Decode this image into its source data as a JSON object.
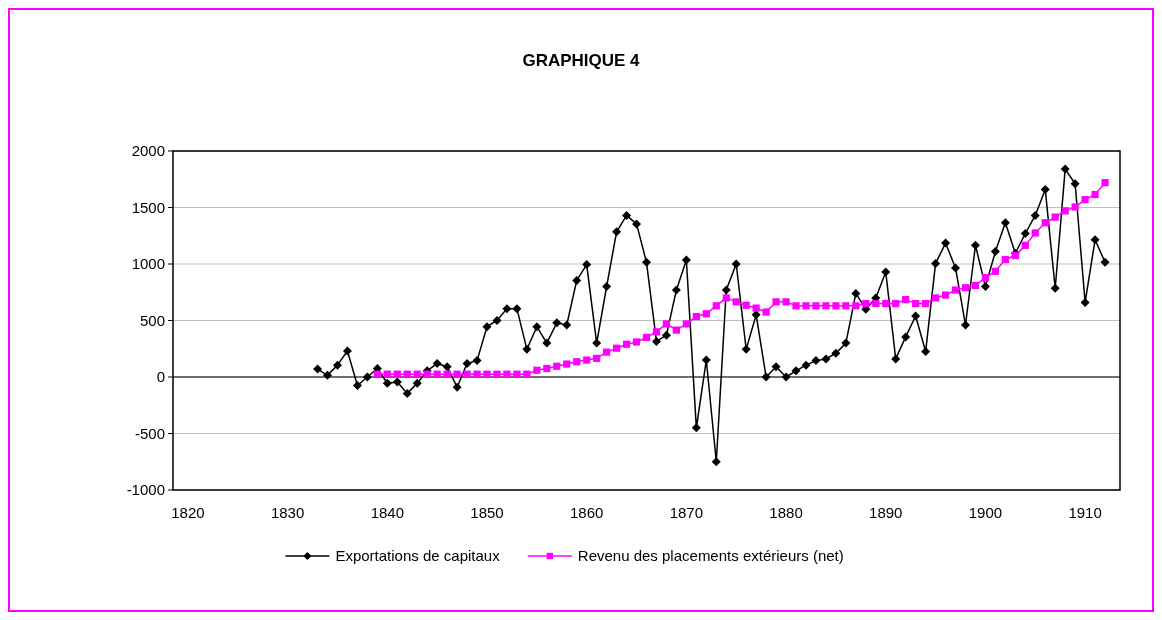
{
  "chart_data": {
    "type": "line",
    "title": "GRAPHIQUE 4",
    "xlim": [
      1818.5,
      1913.5
    ],
    "xticks": [
      1820,
      1830,
      1840,
      1850,
      1860,
      1870,
      1880,
      1890,
      1900,
      1910
    ],
    "ylim": [
      -1000,
      2000
    ],
    "yticks": [
      -1000,
      -500,
      0,
      500,
      1000,
      1500,
      2000
    ],
    "grid": "y",
    "legend": "bottom",
    "ref_lines": [
      {
        "axis": "y",
        "value": 0,
        "color": "#000000"
      }
    ],
    "series": [
      {
        "name": "Exportations de capitaux",
        "color": "#000000",
        "marker": "diamond",
        "x": [
          1833,
          1834,
          1835,
          1836,
          1837,
          1838,
          1839,
          1840,
          1841,
          1842,
          1843,
          1844,
          1845,
          1846,
          1847,
          1848,
          1849,
          1850,
          1851,
          1852,
          1853,
          1854,
          1855,
          1856,
          1857,
          1858,
          1859,
          1860,
          1861,
          1862,
          1863,
          1864,
          1865,
          1866,
          1867,
          1868,
          1869,
          1870,
          1871,
          1872,
          1873,
          1874,
          1875,
          1876,
          1877,
          1878,
          1879,
          1880,
          1881,
          1882,
          1883,
          1884,
          1885,
          1886,
          1887,
          1888,
          1889,
          1890,
          1891,
          1892,
          1893,
          1894,
          1895,
          1896,
          1897,
          1898,
          1899,
          1900,
          1901,
          1902,
          1903,
          1904,
          1905,
          1906,
          1907,
          1908,
          1909,
          1910,
          1911,
          1912
        ],
        "values": [
          70,
          15,
          105,
          230,
          -75,
          0,
          75,
          -55,
          -45,
          -145,
          -55,
          55,
          120,
          90,
          -90,
          120,
          145,
          445,
          500,
          605,
          605,
          245,
          445,
          300,
          480,
          460,
          855,
          995,
          300,
          800,
          1285,
          1430,
          1355,
          1015,
          315,
          370,
          770,
          1035,
          -450,
          150,
          -750,
          770,
          1000,
          245,
          550,
          0,
          90,
          0,
          55,
          105,
          145,
          160,
          210,
          300,
          740,
          600,
          700,
          930,
          160,
          355,
          540,
          225,
          1005,
          1185,
          965,
          460,
          1165,
          800,
          1110,
          1365,
          1095,
          1270,
          1430,
          1660,
          785,
          1840,
          1710,
          660,
          1215,
          1015
        ]
      },
      {
        "name": "Revenu des placements extérieurs (net)",
        "color": "#ff00ff",
        "marker": "square",
        "x": [
          1839,
          1840,
          1841,
          1842,
          1843,
          1844,
          1845,
          1846,
          1847,
          1848,
          1849,
          1850,
          1851,
          1852,
          1853,
          1854,
          1855,
          1856,
          1857,
          1858,
          1859,
          1860,
          1861,
          1862,
          1863,
          1864,
          1865,
          1866,
          1867,
          1868,
          1869,
          1870,
          1871,
          1872,
          1873,
          1874,
          1875,
          1876,
          1877,
          1878,
          1879,
          1880,
          1881,
          1882,
          1883,
          1884,
          1885,
          1886,
          1887,
          1888,
          1889,
          1890,
          1891,
          1892,
          1893,
          1894,
          1895,
          1896,
          1897,
          1898,
          1899,
          1900,
          1901,
          1902,
          1903,
          1904,
          1905,
          1906,
          1907,
          1908,
          1909,
          1910,
          1911,
          1912
        ],
        "values": [
          25,
          25,
          25,
          25,
          25,
          25,
          25,
          25,
          25,
          25,
          25,
          25,
          25,
          25,
          25,
          25,
          60,
          75,
          95,
          115,
          135,
          150,
          165,
          220,
          255,
          290,
          310,
          350,
          400,
          470,
          415,
          470,
          535,
          560,
          630,
          700,
          665,
          635,
          610,
          575,
          665,
          665,
          630,
          630,
          630,
          630,
          630,
          630,
          630,
          650,
          650,
          650,
          650,
          685,
          650,
          650,
          700,
          725,
          770,
          790,
          810,
          880,
          935,
          1040,
          1075,
          1165,
          1275,
          1365,
          1415,
          1470,
          1505,
          1570,
          1615,
          1720
        ]
      }
    ]
  }
}
